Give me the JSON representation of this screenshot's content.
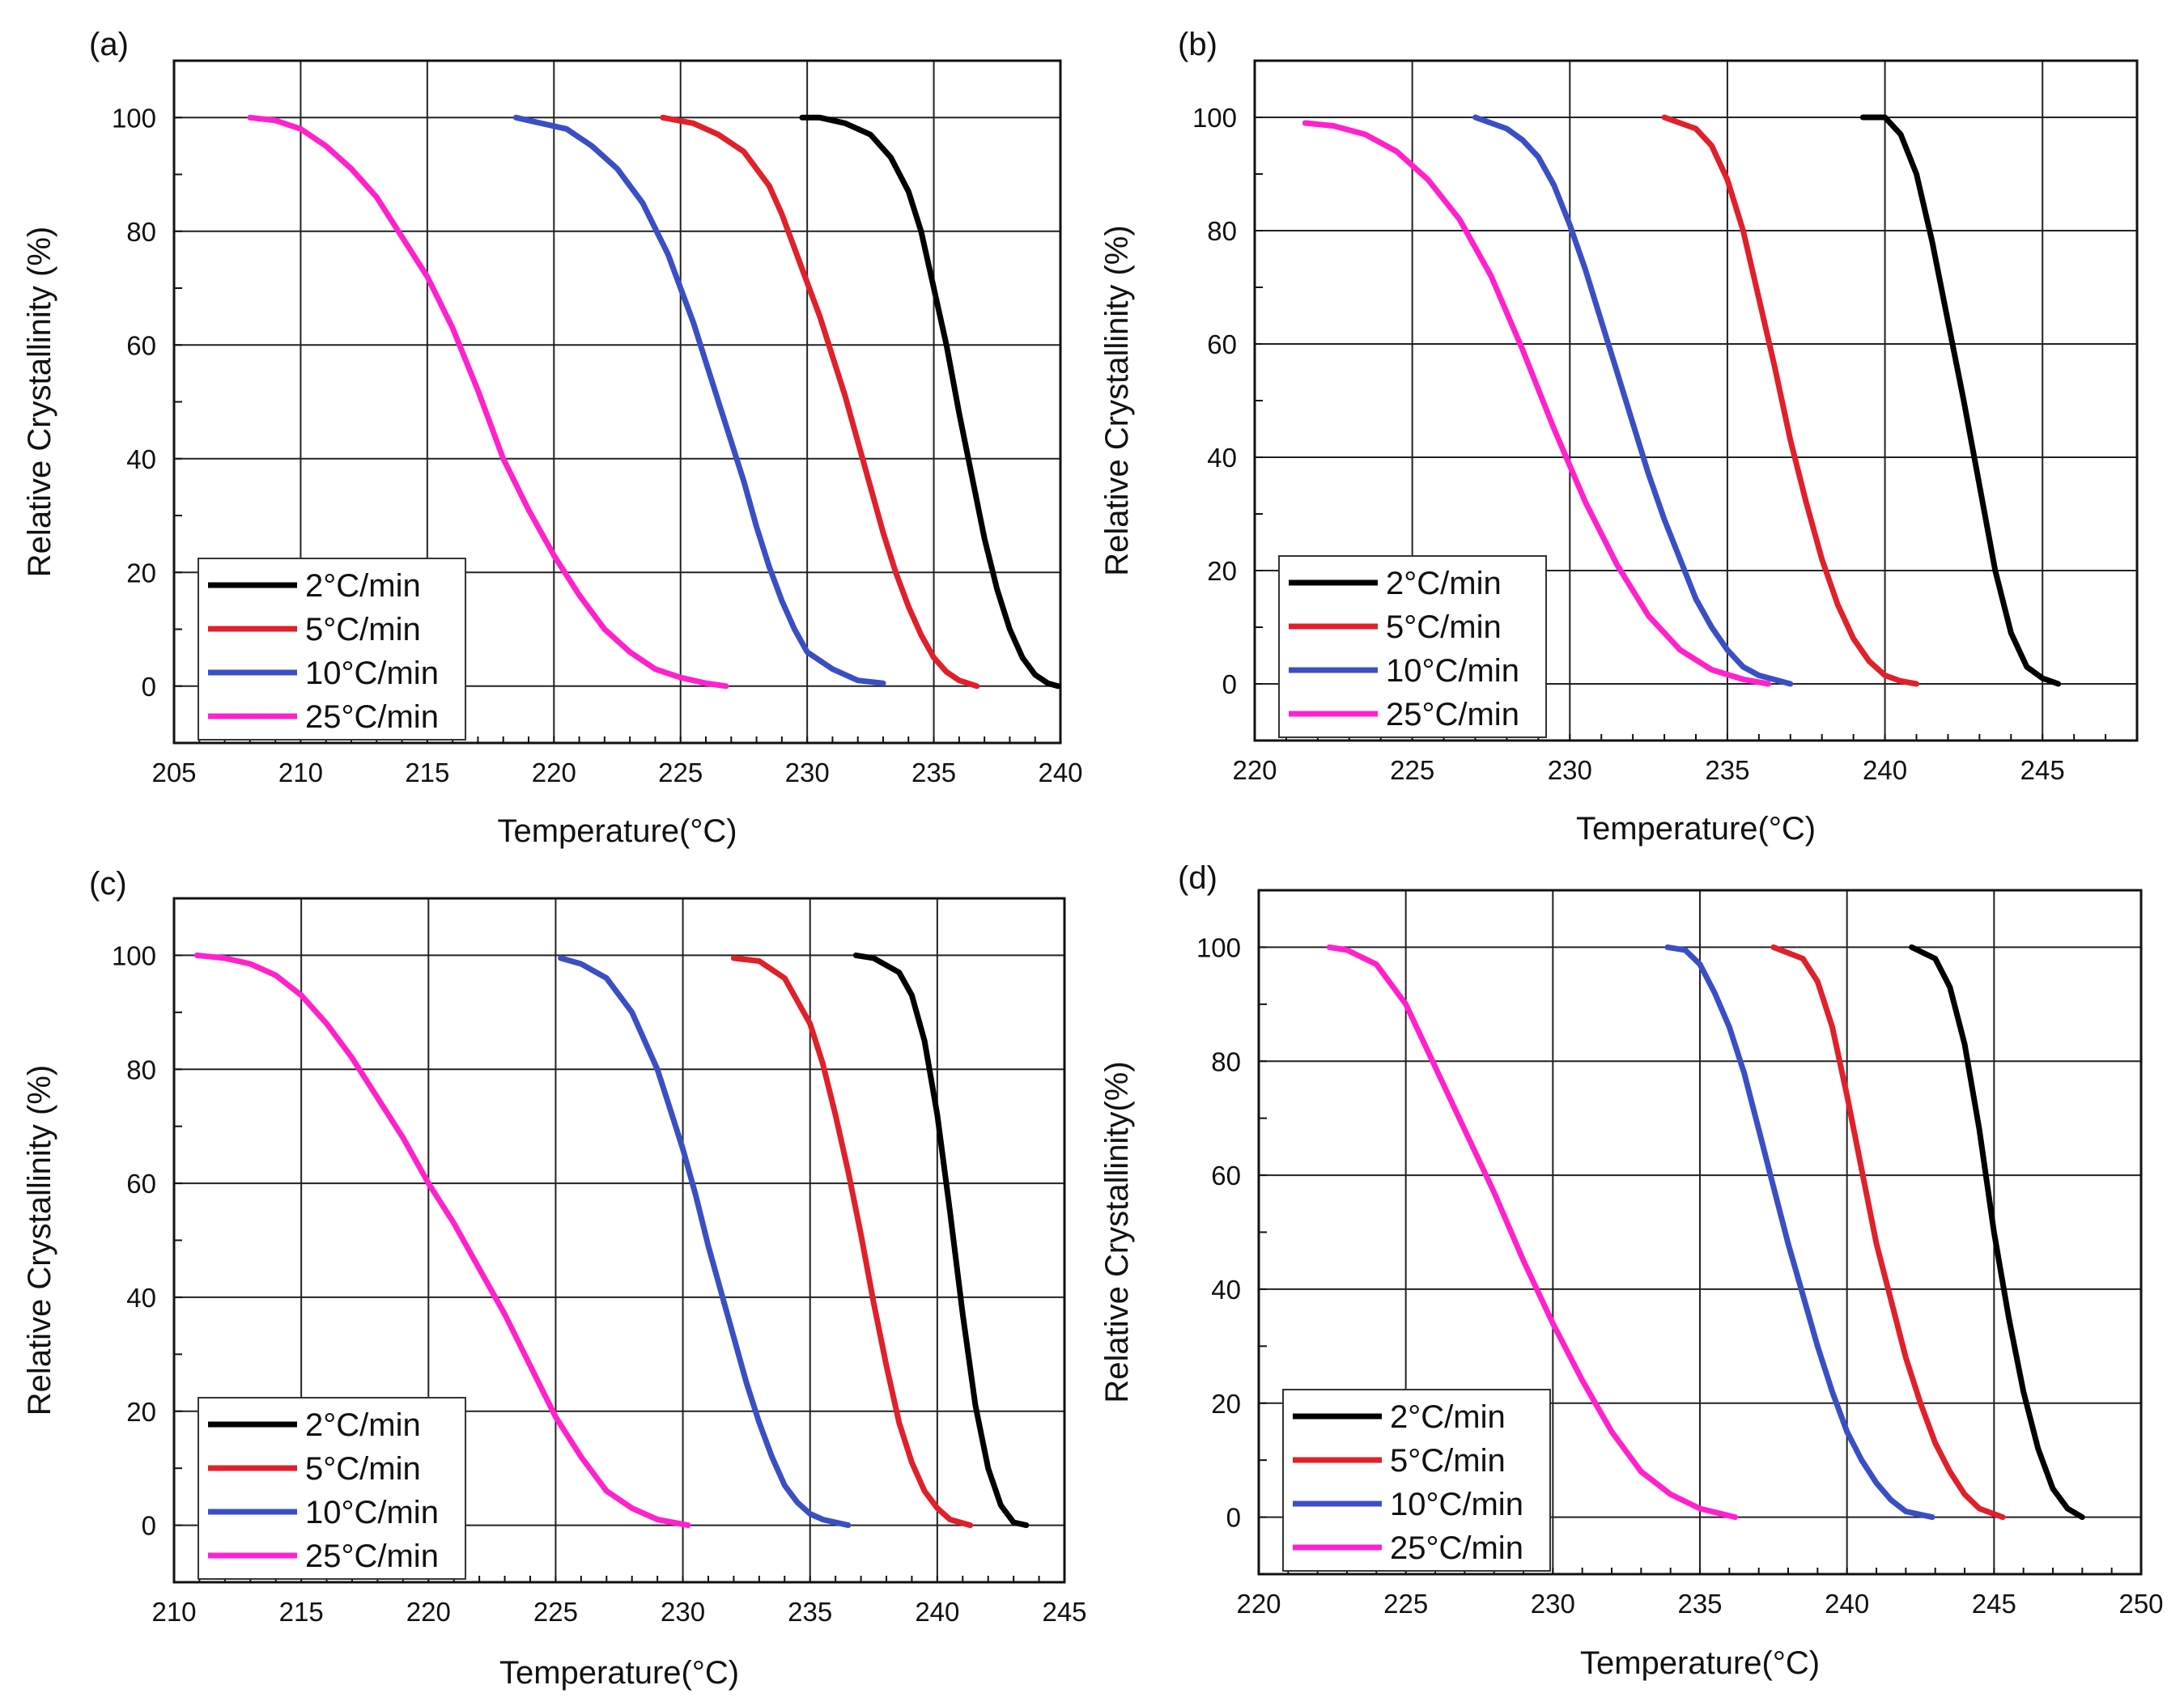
{
  "chart_data": [
    {
      "panel": "(a)",
      "type": "line",
      "xlabel": "Temperature(°C)",
      "ylabel": "Relative Crystallinity (%)",
      "xlim": [
        205,
        240
      ],
      "ylim": [
        -10,
        110
      ],
      "xticks": [
        205,
        210,
        215,
        220,
        225,
        230,
        235,
        240
      ],
      "yticks": [
        0,
        20,
        40,
        60,
        80,
        100
      ],
      "grid": true,
      "legend_position": "bottom-left",
      "series": [
        {
          "name": "2°C/min",
          "color": "#000000",
          "x": [
            229.8,
            230.5,
            231.5,
            232.5,
            233.3,
            234.0,
            234.5,
            235.0,
            235.5,
            236.0,
            236.5,
            237.0,
            237.5,
            238.0,
            238.5,
            239.0,
            239.5,
            239.9
          ],
          "y": [
            100,
            100,
            99,
            97,
            93,
            87,
            80,
            70,
            60,
            48,
            37,
            26,
            17,
            10,
            5,
            2,
            0.5,
            0
          ]
        },
        {
          "name": "5°C/min",
          "color": "#e0202a",
          "x": [
            224.3,
            225.5,
            226.5,
            227.5,
            228.5,
            229.0,
            229.5,
            230.0,
            230.5,
            231.0,
            231.5,
            232.0,
            232.5,
            233.0,
            233.5,
            234.0,
            234.5,
            235.0,
            235.5,
            236.0,
            236.7
          ],
          "y": [
            100,
            99,
            97,
            94,
            88,
            83,
            77,
            71,
            65,
            58,
            51,
            43,
            35,
            27,
            20,
            14,
            9,
            5,
            2.5,
            1,
            0
          ]
        },
        {
          "name": "10°C/min",
          "color": "#3a4fc4",
          "x": [
            218.5,
            219.5,
            220.5,
            221.5,
            222.5,
            223.5,
            224.5,
            225.0,
            225.5,
            226.0,
            226.5,
            227.0,
            227.5,
            228.0,
            228.5,
            229.0,
            229.5,
            230.0,
            231.0,
            232.0,
            233.0
          ],
          "y": [
            100,
            99,
            98,
            95,
            91,
            85,
            76,
            70,
            64,
            57,
            50,
            43,
            36,
            28,
            21,
            15,
            10,
            6,
            3,
            1,
            0.5
          ]
        },
        {
          "name": "25°C/min",
          "color": "#ff22cc",
          "x": [
            208.0,
            209.0,
            210.0,
            211.0,
            212.0,
            213.0,
            214.0,
            215.0,
            216.0,
            217.0,
            218.0,
            219.0,
            220.0,
            221.0,
            222.0,
            223.0,
            224.0,
            225.0,
            226.0,
            226.8
          ],
          "y": [
            100,
            99.5,
            98,
            95,
            91,
            86,
            79,
            72,
            63,
            52,
            40,
            31,
            23,
            16,
            10,
            6,
            3,
            1.5,
            0.5,
            0
          ]
        }
      ]
    },
    {
      "panel": "(b)",
      "type": "line",
      "xlabel": "Temperature(°C)",
      "ylabel": "Relative Crystallinity (%)",
      "xlim": [
        220,
        248
      ],
      "ylim": [
        -10,
        110
      ],
      "xticks": [
        220,
        225,
        230,
        235,
        240,
        245
      ],
      "yticks": [
        0,
        20,
        40,
        60,
        80,
        100
      ],
      "grid": true,
      "legend_position": "bottom-left",
      "series": [
        {
          "name": "2°C/min",
          "color": "#000000",
          "x": [
            239.3,
            240.0,
            240.5,
            241.0,
            241.5,
            242.0,
            242.5,
            243.0,
            243.5,
            244.0,
            244.5,
            245.0,
            245.5
          ],
          "y": [
            100,
            100,
            97,
            90,
            78,
            64,
            50,
            35,
            20,
            9,
            3,
            1,
            0
          ]
        },
        {
          "name": "5°C/min",
          "color": "#e0202a",
          "x": [
            233.0,
            234.0,
            234.5,
            235.0,
            235.5,
            236.0,
            236.5,
            237.0,
            237.5,
            238.0,
            238.5,
            239.0,
            239.5,
            240.0,
            240.5,
            241.0
          ],
          "y": [
            100,
            98,
            95,
            89,
            80,
            68,
            56,
            43,
            32,
            22,
            14,
            8,
            4,
            1.5,
            0.5,
            0
          ]
        },
        {
          "name": "10°C/min",
          "color": "#3a4fc4",
          "x": [
            227.0,
            228.0,
            228.5,
            229.0,
            229.5,
            230.0,
            230.5,
            231.0,
            231.5,
            232.0,
            232.5,
            233.0,
            233.5,
            234.0,
            234.5,
            235.0,
            235.5,
            236.0,
            237.0
          ],
          "y": [
            100,
            98,
            96,
            93,
            88,
            81,
            73,
            64,
            55,
            46,
            37,
            29,
            22,
            15,
            10,
            6,
            3,
            1.5,
            0
          ]
        },
        {
          "name": "25°C/min",
          "color": "#ff22cc",
          "x": [
            221.6,
            222.5,
            223.5,
            224.5,
            225.5,
            226.5,
            227.5,
            228.5,
            229.5,
            230.5,
            231.5,
            232.5,
            233.5,
            234.5,
            235.5,
            236.3
          ],
          "y": [
            99,
            98.5,
            97,
            94,
            89,
            82,
            72,
            59,
            45,
            32,
            21,
            12,
            6,
            2.5,
            0.8,
            0
          ]
        }
      ]
    },
    {
      "panel": "(c)",
      "type": "line",
      "xlabel": "Temperature(°C)",
      "ylabel": "Relative Crystallinity (%)",
      "xlim": [
        210,
        245
      ],
      "ylim": [
        -10,
        110
      ],
      "xticks": [
        210,
        215,
        220,
        225,
        230,
        235,
        240,
        245
      ],
      "yticks": [
        0,
        20,
        40,
        60,
        80,
        100
      ],
      "grid": true,
      "legend_position": "bottom-left",
      "series": [
        {
          "name": "2°C/min",
          "color": "#000000",
          "x": [
            236.8,
            237.5,
            238.5,
            239.0,
            239.5,
            240.0,
            240.5,
            241.0,
            241.5,
            242.0,
            242.5,
            243.0,
            243.5
          ],
          "y": [
            100,
            99.5,
            97,
            93,
            85,
            72,
            55,
            37,
            21,
            10,
            3.5,
            0.5,
            0
          ]
        },
        {
          "name": "5°C/min",
          "color": "#e0202a",
          "x": [
            232.0,
            233.0,
            234.0,
            235.0,
            235.5,
            236.0,
            236.5,
            237.0,
            237.5,
            238.0,
            238.5,
            239.0,
            239.5,
            240.0,
            240.5,
            241.3
          ],
          "y": [
            99.5,
            99,
            96,
            88,
            81,
            72,
            62,
            51,
            39,
            28,
            18,
            11,
            6,
            3,
            1,
            0
          ]
        },
        {
          "name": "10°C/min",
          "color": "#3a4fc4",
          "x": [
            225.2,
            226.0,
            227.0,
            228.0,
            229.0,
            229.5,
            230.0,
            230.5,
            231.0,
            231.5,
            232.0,
            232.5,
            233.0,
            233.5,
            234.0,
            234.5,
            235.0,
            235.5,
            236.5
          ],
          "y": [
            99.5,
            98.5,
            96,
            90,
            80,
            73,
            66,
            58,
            49,
            41,
            33,
            25,
            18,
            12,
            7,
            4,
            2,
            1,
            0
          ]
        },
        {
          "name": "25°C/min",
          "color": "#ff22cc",
          "x": [
            210.9,
            212.0,
            213.0,
            214.0,
            215.0,
            216.0,
            217.0,
            218.0,
            219.0,
            220.0,
            221.0,
            222.0,
            223.0,
            224.0,
            225.0,
            226.0,
            227.0,
            228.0,
            229.0,
            230.2
          ],
          "y": [
            100,
            99.5,
            98.5,
            96.5,
            93,
            88,
            82,
            75,
            68,
            60,
            53,
            45,
            37,
            28,
            19,
            12,
            6,
            3,
            1,
            0
          ]
        }
      ]
    },
    {
      "panel": "(d)",
      "type": "line",
      "xlabel": "Temperature(°C)",
      "ylabel": "Relative Crystallinity(%)",
      "xlim": [
        220,
        250
      ],
      "ylim": [
        -10,
        110
      ],
      "xticks": [
        220,
        225,
        230,
        235,
        240,
        245,
        250
      ],
      "yticks": [
        0,
        20,
        40,
        60,
        80,
        100
      ],
      "grid": true,
      "legend_position": "bottom-left",
      "series": [
        {
          "name": "2°C/min",
          "color": "#000000",
          "x": [
            242.2,
            243.0,
            243.5,
            244.0,
            244.5,
            245.0,
            245.5,
            246.0,
            246.5,
            247.0,
            247.5,
            248.0
          ],
          "y": [
            100,
            98,
            93,
            83,
            68,
            50,
            35,
            22,
            12,
            5,
            1.5,
            0
          ]
        },
        {
          "name": "5°C/min",
          "color": "#e0202a",
          "x": [
            237.5,
            238.5,
            239.0,
            239.5,
            240.0,
            240.5,
            241.0,
            241.5,
            242.0,
            242.5,
            243.0,
            243.5,
            244.0,
            244.5,
            245.3
          ],
          "y": [
            100,
            98,
            94,
            86,
            74,
            61,
            48,
            38,
            28,
            20,
            13,
            8,
            4,
            1.5,
            0
          ]
        },
        {
          "name": "10°C/min",
          "color": "#3a4fc4",
          "x": [
            233.9,
            234.5,
            235.0,
            235.5,
            236.0,
            236.5,
            237.0,
            237.5,
            238.0,
            238.5,
            239.0,
            239.5,
            240.0,
            240.5,
            241.0,
            241.5,
            242.0,
            242.9
          ],
          "y": [
            100,
            99.5,
            97,
            92,
            86,
            78,
            68,
            58,
            48,
            39,
            30,
            22,
            15,
            10,
            6,
            3,
            1,
            0
          ]
        },
        {
          "name": "25°C/min",
          "color": "#ff22cc",
          "x": [
            222.4,
            223.0,
            224.0,
            225.0,
            226.0,
            227.0,
            228.0,
            229.0,
            230.0,
            231.0,
            232.0,
            233.0,
            234.0,
            235.0,
            236.2
          ],
          "y": [
            100,
            99.5,
            97,
            90,
            79,
            68,
            57,
            45,
            34,
            24,
            15,
            8,
            4,
            1.5,
            0
          ]
        }
      ]
    }
  ]
}
